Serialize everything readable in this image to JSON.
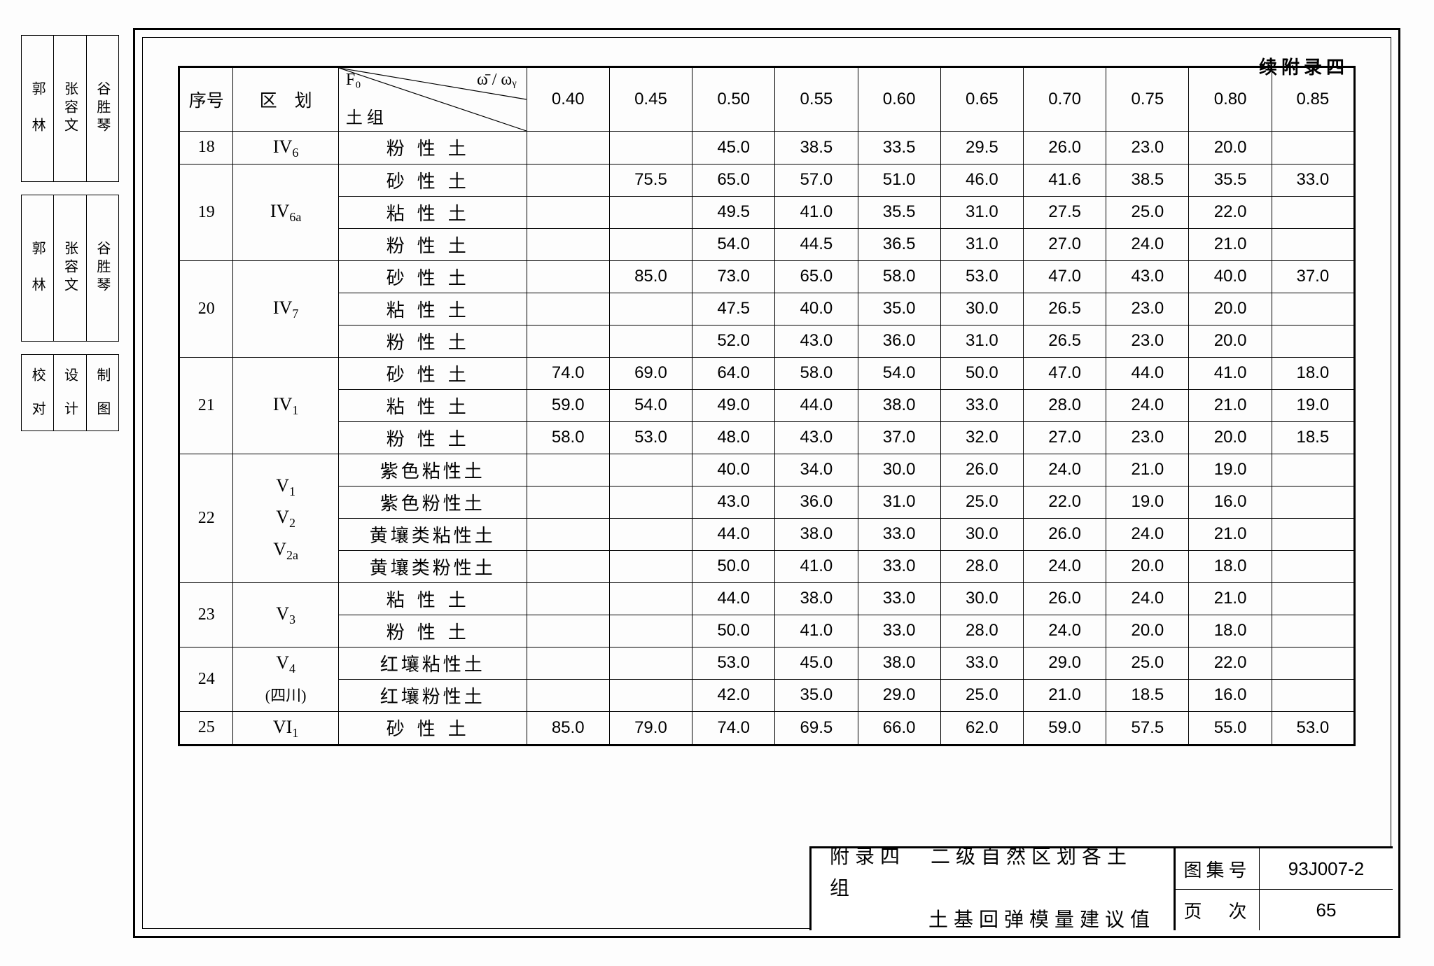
{
  "continued_label": "续附录四",
  "sidebar": {
    "stamp1": [
      "郭　林",
      "张容文",
      "谷胜琴"
    ],
    "stamp2": [
      "郭　林",
      "张容文",
      "谷胜琴"
    ],
    "stamp3": [
      "校　对",
      "设　计",
      "制　图"
    ]
  },
  "header": {
    "seq": "序号",
    "zone": "区　划",
    "f_label": "F₀",
    "w_label": "ω̄ / ωᵧ",
    "soil": "土组",
    "cols": [
      "0.40",
      "0.45",
      "0.50",
      "0.55",
      "0.60",
      "0.65",
      "0.70",
      "0.75",
      "0.80",
      "0.85"
    ]
  },
  "rows": [
    {
      "seq": "18",
      "zone": "IV<sub>6</sub>",
      "soils": [
        {
          "cls": "soilcell",
          "name": "粉性土",
          "v": [
            "",
            "",
            "45.0",
            "38.5",
            "33.5",
            "29.5",
            "26.0",
            "23.0",
            "20.0",
            ""
          ]
        }
      ]
    },
    {
      "seq": "19",
      "zone": "IV<sub>6a</sub>",
      "soils": [
        {
          "cls": "soilcell",
          "name": "砂性土",
          "v": [
            "",
            "75.5",
            "65.0",
            "57.0",
            "51.0",
            "46.0",
            "41.6",
            "38.5",
            "35.5",
            "33.0"
          ]
        },
        {
          "cls": "soilcell",
          "name": "粘性土",
          "v": [
            "",
            "",
            "49.5",
            "41.0",
            "35.5",
            "31.0",
            "27.5",
            "25.0",
            "22.0",
            ""
          ]
        },
        {
          "cls": "soilcell",
          "name": "粉性土",
          "v": [
            "",
            "",
            "54.0",
            "44.5",
            "36.5",
            "31.0",
            "27.0",
            "24.0",
            "21.0",
            ""
          ]
        }
      ]
    },
    {
      "seq": "20",
      "zone": "IV<sub>7</sub>",
      "soils": [
        {
          "cls": "soilcell",
          "name": "砂性土",
          "v": [
            "",
            "85.0",
            "73.0",
            "65.0",
            "58.0",
            "53.0",
            "47.0",
            "43.0",
            "40.0",
            "37.0"
          ]
        },
        {
          "cls": "soilcell",
          "name": "粘性土",
          "v": [
            "",
            "",
            "47.5",
            "40.0",
            "35.0",
            "30.0",
            "26.5",
            "23.0",
            "20.0",
            ""
          ]
        },
        {
          "cls": "soilcell",
          "name": "粉性土",
          "v": [
            "",
            "",
            "52.0",
            "43.0",
            "36.0",
            "31.0",
            "26.5",
            "23.0",
            "20.0",
            ""
          ]
        }
      ]
    },
    {
      "seq": "21",
      "zone": "IV<sub>1</sub>",
      "soils": [
        {
          "cls": "soilcell",
          "name": "砂性土",
          "v": [
            "74.0",
            "69.0",
            "64.0",
            "58.0",
            "54.0",
            "50.0",
            "47.0",
            "44.0",
            "41.0",
            "18.0"
          ]
        },
        {
          "cls": "soilcell",
          "name": "粘性土",
          "v": [
            "59.0",
            "54.0",
            "49.0",
            "44.0",
            "38.0",
            "33.0",
            "28.0",
            "24.0",
            "21.0",
            "19.0"
          ]
        },
        {
          "cls": "soilcell",
          "name": "粉性土",
          "v": [
            "58.0",
            "53.0",
            "48.0",
            "43.0",
            "37.0",
            "32.0",
            "27.0",
            "23.0",
            "20.0",
            "18.5"
          ]
        }
      ]
    },
    {
      "seq": "22",
      "zone": "V<sub>1</sub><br>V<sub>2</sub><br>V<sub>2a</sub>",
      "soils": [
        {
          "cls": "soilcell tight",
          "name": "紫色粘性土",
          "v": [
            "",
            "",
            "40.0",
            "34.0",
            "30.0",
            "26.0",
            "24.0",
            "21.0",
            "19.0",
            ""
          ]
        },
        {
          "cls": "soilcell tight",
          "name": "紫色粉性土",
          "v": [
            "",
            "",
            "43.0",
            "36.0",
            "31.0",
            "25.0",
            "22.0",
            "19.0",
            "16.0",
            ""
          ]
        },
        {
          "cls": "soilcell tight",
          "name": "黄壤类粘性土",
          "v": [
            "",
            "",
            "44.0",
            "38.0",
            "33.0",
            "30.0",
            "26.0",
            "24.0",
            "21.0",
            ""
          ]
        },
        {
          "cls": "soilcell tight",
          "name": "黄壤类粉性土",
          "v": [
            "",
            "",
            "50.0",
            "41.0",
            "33.0",
            "28.0",
            "24.0",
            "20.0",
            "18.0",
            ""
          ]
        }
      ]
    },
    {
      "seq": "23",
      "zone": "V<sub>3</sub>",
      "soils": [
        {
          "cls": "soilcell",
          "name": "粘性土",
          "v": [
            "",
            "",
            "44.0",
            "38.0",
            "33.0",
            "30.0",
            "26.0",
            "24.0",
            "21.0",
            ""
          ]
        },
        {
          "cls": "soilcell",
          "name": "粉性土",
          "v": [
            "",
            "",
            "50.0",
            "41.0",
            "33.0",
            "28.0",
            "24.0",
            "20.0",
            "18.0",
            ""
          ]
        }
      ]
    },
    {
      "seq": "24",
      "zone": "V<sub>4</sub><br><span class='cn'>(四川)</span>",
      "soils": [
        {
          "cls": "soilcell tight",
          "name": "红壤粘性土",
          "v": [
            "",
            "",
            "53.0",
            "45.0",
            "38.0",
            "33.0",
            "29.0",
            "25.0",
            "22.0",
            ""
          ]
        },
        {
          "cls": "soilcell tight",
          "name": "红壤粉性土",
          "v": [
            "",
            "",
            "42.0",
            "35.0",
            "29.0",
            "25.0",
            "21.0",
            "18.5",
            "16.0",
            ""
          ]
        }
      ]
    },
    {
      "seq": "25",
      "zone": "VI<sub>1</sub>",
      "soils": [
        {
          "cls": "soilcell",
          "name": "砂性土",
          "v": [
            "85.0",
            "79.0",
            "74.0",
            "69.5",
            "66.0",
            "62.0",
            "59.0",
            "57.5",
            "55.0",
            "53.0"
          ]
        }
      ]
    }
  ],
  "titleblock": {
    "title_l1": "附录四　二级自然区划各土组",
    "title_l2": "土基回弹模量建议值",
    "book_k": "图集号",
    "book_v": "93J007-2",
    "page_k": "页　次",
    "page_v": "65"
  }
}
